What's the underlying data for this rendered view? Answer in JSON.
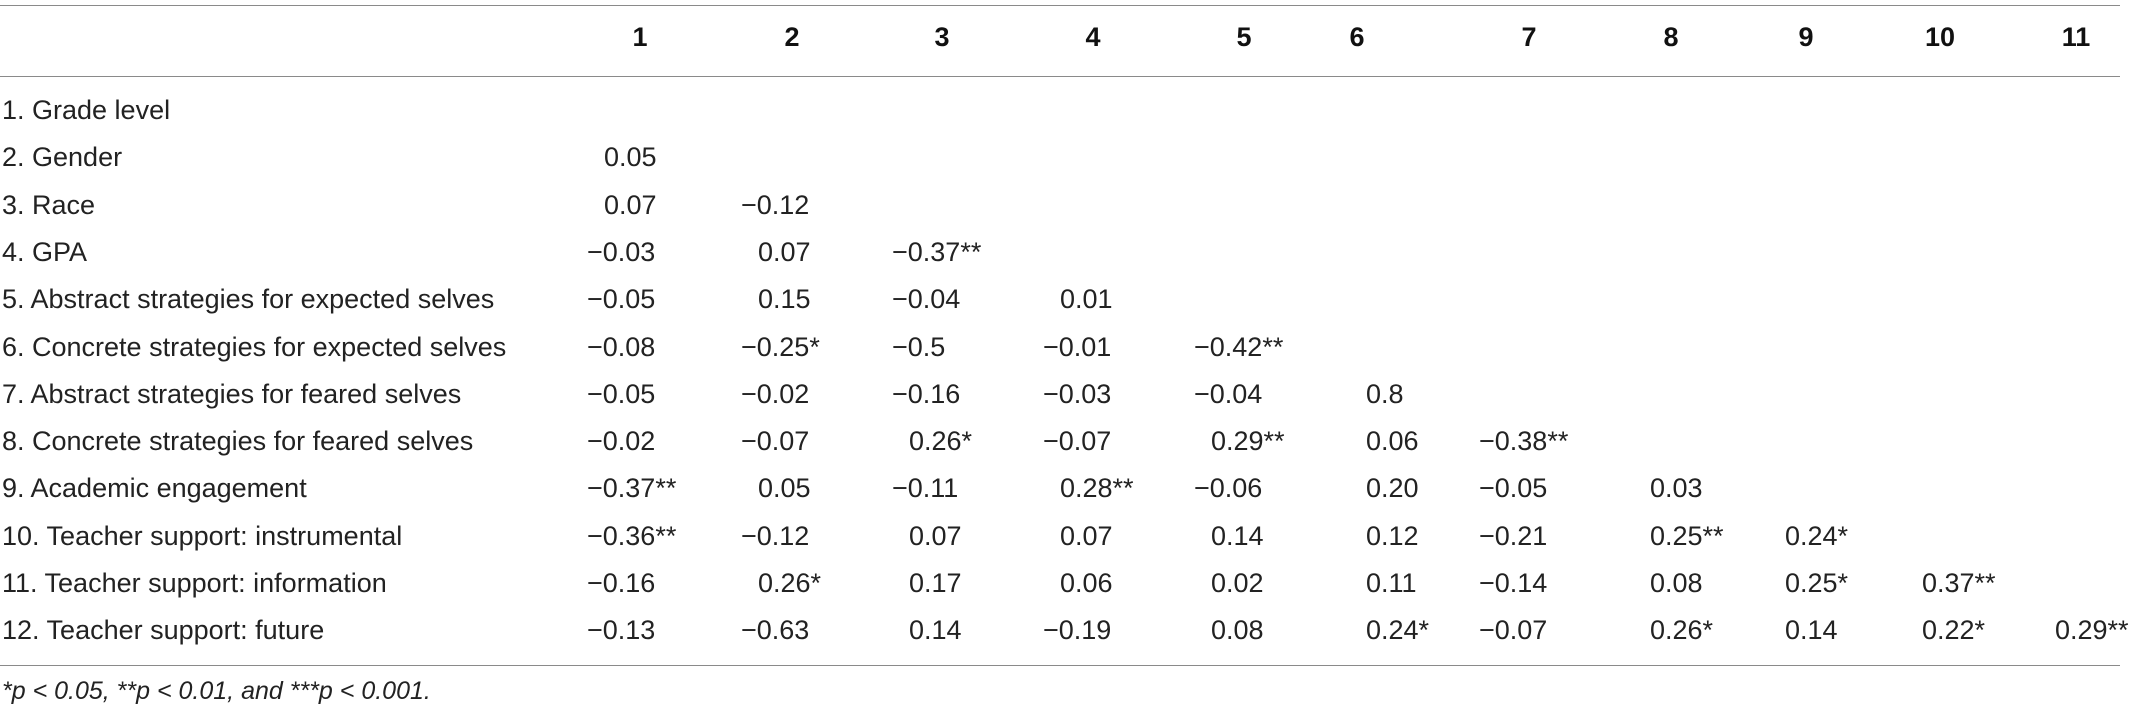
{
  "table": {
    "columns": [
      "1",
      "2",
      "3",
      "4",
      "5",
      "6",
      "7",
      "8",
      "9",
      "10",
      "11"
    ],
    "rows": [
      {
        "label": "1. Grade level",
        "cells": []
      },
      {
        "label": "2. Gender",
        "cells": [
          "0.05"
        ]
      },
      {
        "label": "3. Race",
        "cells": [
          "0.07",
          "−0.12"
        ]
      },
      {
        "label": "4. GPA",
        "cells": [
          "−0.03",
          "0.07",
          "−0.37**"
        ]
      },
      {
        "label": "5. Abstract strategies for expected selves",
        "cells": [
          "−0.05",
          "0.15",
          "−0.04",
          "0.01"
        ]
      },
      {
        "label": "6. Concrete strategies for expected selves",
        "cells": [
          "−0.08",
          "−0.25*",
          "−0.5",
          "−0.01",
          "−0.42**"
        ]
      },
      {
        "label": "7. Abstract strategies for feared selves",
        "cells": [
          "−0.05",
          "−0.02",
          "−0.16",
          "−0.03",
          "−0.04",
          "0.8"
        ]
      },
      {
        "label": "8. Concrete strategies for feared selves",
        "cells": [
          "−0.02",
          "−0.07",
          "0.26*",
          "−0.07",
          "0.29**",
          "0.06",
          "−0.38**"
        ]
      },
      {
        "label": "9. Academic engagement",
        "cells": [
          "−0.37**",
          "0.05",
          "−0.11",
          "0.28**",
          "−0.06",
          "0.20",
          "−0.05",
          "0.03"
        ]
      },
      {
        "label": "10. Teacher support: instrumental",
        "cells": [
          "−0.36**",
          "−0.12",
          "0.07",
          "0.07",
          "0.14",
          "0.12",
          "−0.21",
          "0.25**",
          "0.24*"
        ]
      },
      {
        "label": "11. Teacher support: information",
        "cells": [
          "−0.16",
          "0.26*",
          "0.17",
          "0.06",
          "0.02",
          "0.11",
          "−0.14",
          "0.08",
          "0.25*",
          "0.37**"
        ]
      },
      {
        "label": "12. Teacher support: future",
        "cells": [
          "−0.13",
          "−0.63",
          "0.14",
          "−0.19",
          "0.08",
          "0.24*",
          "−0.07",
          "0.26*",
          "0.14",
          "0.22*",
          "0.29**"
        ]
      }
    ],
    "footnote": "*p < 0.05, **p < 0.01, and ***p < 0.001."
  }
}
